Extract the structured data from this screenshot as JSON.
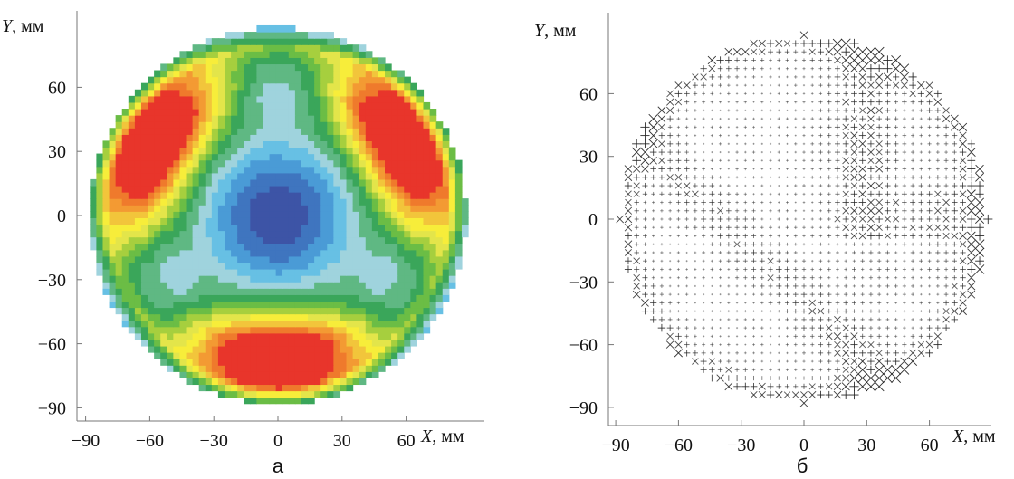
{
  "chart_data": [
    {
      "type": "heatmap",
      "panel_label": "а",
      "xlabel_var": "X",
      "xlabel_unit": ", мм",
      "ylabel_var": "Y",
      "ylabel_unit": ", мм",
      "xlim": [
        -100,
        100
      ],
      "ylim": [
        -100,
        100
      ],
      "x_ticks": [
        -90,
        -60,
        -30,
        0,
        30,
        60
      ],
      "y_ticks": [
        60,
        30,
        0,
        -30,
        -60,
        -90
      ],
      "x_tick_labels": [
        "−90",
        "−60",
        "−30",
        "0",
        "30",
        "60"
      ],
      "y_tick_labels": [
        "60",
        "30",
        "0",
        "−30",
        "−60",
        "−90"
      ],
      "aperture_radius": 88,
      "palette": [
        "#3d54a6",
        "#3f75bf",
        "#4a9bd6",
        "#67c0e4",
        "#9fd3dd",
        "#5fb883",
        "#3aa65a",
        "#6bbd45",
        "#a6cf3e",
        "#e3e54a",
        "#f7ed3a",
        "#f2c53b",
        "#f39a33",
        "#ef7a2c",
        "#e8352b"
      ],
      "grid": false
    },
    {
      "type": "scatter",
      "panel_label": "б",
      "xlabel_var": "X",
      "xlabel_unit": ", мм",
      "ylabel_var": "Y",
      "ylabel_unit": ", мм",
      "xlim": [
        -95,
        95
      ],
      "ylim": [
        -95,
        95
      ],
      "x_ticks": [
        -90,
        -60,
        -30,
        0,
        30,
        60
      ],
      "y_ticks": [
        60,
        30,
        0,
        -30,
        -60,
        -90
      ],
      "x_tick_labels": [
        "−90",
        "−60",
        "−30",
        "0",
        "30",
        "60"
      ],
      "y_tick_labels": [
        "60",
        "30",
        "0",
        "−30",
        "−60",
        "−90"
      ],
      "aperture_radius": 88,
      "grid_spacing": 4,
      "marker_color": "#222222",
      "grid": false
    }
  ]
}
